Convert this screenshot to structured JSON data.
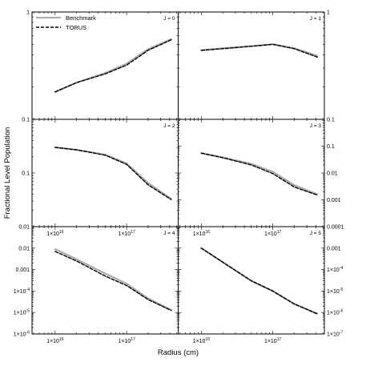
{
  "chart_data": {
    "type": "line",
    "xlabel": "Radius (cm)",
    "ylabel": "Fractional Level Population",
    "x_scale": "log",
    "y_scale": "log",
    "xlim": [
      5000000000000000.0,
      5e+17
    ],
    "x_ticks": [
      {
        "value": 1e+16,
        "label": "1×10",
        "exp": "16"
      },
      {
        "value": 1e+17,
        "label": "1×10",
        "exp": "17"
      }
    ],
    "legend": {
      "placement": "top-left",
      "entries": [
        {
          "name": "Benchmark",
          "color": "#aaaaaa",
          "style": "solid"
        },
        {
          "name": "TORUS",
          "color": "#000000",
          "style": "dashed"
        }
      ]
    },
    "panels": [
      {
        "label": "J = 0",
        "ylim": [
          0.1,
          1
        ],
        "y_axis_side": "left",
        "y_ticks": [
          {
            "value": 1,
            "label": "1"
          },
          {
            "value": 0.1,
            "label": "0.1"
          }
        ],
        "x_ticklabels": false,
        "series": [
          {
            "name": "Benchmark",
            "x": [
              1e+16,
              2e+16,
              5e+16,
              1e+17,
              2e+17,
              4.2e+17
            ],
            "y": [
              0.18,
              0.22,
              0.27,
              0.33,
              0.45,
              0.56
            ]
          },
          {
            "name": "TORUS",
            "x": [
              1e+16,
              2e+16,
              5e+16,
              1e+17,
              2e+17,
              4.2e+17
            ],
            "y": [
              0.18,
              0.22,
              0.265,
              0.32,
              0.44,
              0.55
            ]
          }
        ]
      },
      {
        "label": "J = 1",
        "ylim": [
          0.1,
          1
        ],
        "y_axis_side": "right",
        "y_ticks": [
          {
            "value": 1,
            "label": "1"
          },
          {
            "value": 0.1,
            "label": "0.1"
          }
        ],
        "x_ticklabels": false,
        "series": [
          {
            "name": "Benchmark",
            "x": [
              1e+16,
              2e+16,
              5e+16,
              1e+17,
              2e+17,
              4.2e+17
            ],
            "y": [
              0.44,
              0.46,
              0.48,
              0.5,
              0.46,
              0.39
            ]
          },
          {
            "name": "TORUS",
            "x": [
              1e+16,
              2e+16,
              5e+16,
              1e+17,
              2e+17,
              4.2e+17
            ],
            "y": [
              0.44,
              0.455,
              0.48,
              0.5,
              0.455,
              0.38
            ]
          }
        ]
      },
      {
        "label": "J = 2",
        "ylim": [
          0.01,
          1
        ],
        "y_axis_side": "left",
        "y_ticks": [
          {
            "value": 0.1,
            "label": "0.1"
          },
          {
            "value": 0.01,
            "label": "0.01"
          }
        ],
        "x_ticklabels": true,
        "series": [
          {
            "name": "Benchmark",
            "x": [
              1e+16,
              2e+16,
              5e+16,
              1e+17,
              2e+17,
              4.2e+17
            ],
            "y": [
              0.3,
              0.27,
              0.22,
              0.15,
              0.065,
              0.033
            ]
          },
          {
            "name": "TORUS",
            "x": [
              1e+16,
              2e+16,
              5e+16,
              1e+17,
              2e+17,
              4.2e+17
            ],
            "y": [
              0.3,
              0.27,
              0.215,
              0.145,
              0.06,
              0.032
            ]
          }
        ]
      },
      {
        "label": "J = 3",
        "ylim": [
          0.0001,
          1
        ],
        "y_axis_side": "right",
        "y_ticks": [
          {
            "value": 0.1,
            "label": "0.1"
          },
          {
            "value": 0.01,
            "label": "0.01"
          },
          {
            "value": 0.001,
            "label": "0.001"
          },
          {
            "value": 0.0001,
            "label": "0.0001"
          }
        ],
        "x_ticklabels": true,
        "series": [
          {
            "name": "Benchmark",
            "x": [
              1e+16,
              2e+16,
              5e+16,
              1e+17,
              2e+17,
              4.2e+17
            ],
            "y": [
              0.055,
              0.038,
              0.022,
              0.011,
              0.0035,
              0.0016
            ]
          },
          {
            "name": "TORUS",
            "x": [
              1e+16,
              2e+16,
              5e+16,
              1e+17,
              2e+17,
              4.2e+17
            ],
            "y": [
              0.055,
              0.037,
              0.02,
              0.0095,
              0.003,
              0.0015
            ]
          }
        ]
      },
      {
        "label": "J = 4",
        "ylim": [
          1e-06,
          0.1
        ],
        "y_axis_side": "left",
        "y_ticks": [
          {
            "value": 0.01,
            "label": "0.01"
          },
          {
            "value": 0.001,
            "label": "0.001"
          },
          {
            "value": 0.0001,
            "label": "1×10",
            "exp": "-4"
          },
          {
            "value": 1e-05,
            "label": "1×10",
            "exp": "-5"
          },
          {
            "value": 1e-06,
            "label": "1×10",
            "exp": "-6"
          }
        ],
        "x_ticklabels": true,
        "series": [
          {
            "name": "Benchmark",
            "x": [
              1e+16,
              2e+16,
              5e+16,
              1e+17,
              2e+17,
              4.2e+17
            ],
            "y": [
              0.009,
              0.003,
              0.00065,
              0.00022,
              4.5e-05,
              1.3e-05
            ]
          },
          {
            "name": "TORUS",
            "x": [
              1e+16,
              2e+16,
              5e+16,
              1e+17,
              2e+17,
              4.2e+17
            ],
            "y": [
              0.007,
              0.0025,
              0.0005,
              0.00018,
              4e-05,
              1.25e-05
            ]
          }
        ]
      },
      {
        "label": "J = 5",
        "ylim": [
          1e-07,
          0.01
        ],
        "y_axis_side": "right",
        "y_ticks": [
          {
            "value": 0.001,
            "label": "0.001"
          },
          {
            "value": 0.0001,
            "label": "1×10",
            "exp": "-4"
          },
          {
            "value": 1e-05,
            "label": "1×10",
            "exp": "-5"
          },
          {
            "value": 1e-06,
            "label": "1×10",
            "exp": "-6"
          },
          {
            "value": 1e-07,
            "label": "1×10",
            "exp": "-7"
          }
        ],
        "x_ticklabels": true,
        "series": [
          {
            "name": "Benchmark",
            "x": [
              1e+16,
              2e+16,
              5e+16,
              1e+17,
              2e+17,
              4.2e+17
            ],
            "y": [
              0.001,
              0.00022,
              3e-05,
              1e-05,
              2.5e-06,
              9e-07
            ]
          },
          {
            "name": "TORUS",
            "x": [
              1e+16,
              2e+16,
              5e+16,
              1e+17,
              2e+17,
              4.2e+17
            ],
            "y": [
              0.001,
              0.00022,
              3e-05,
              1e-05,
              2.5e-06,
              8.5e-07
            ]
          }
        ]
      }
    ]
  }
}
